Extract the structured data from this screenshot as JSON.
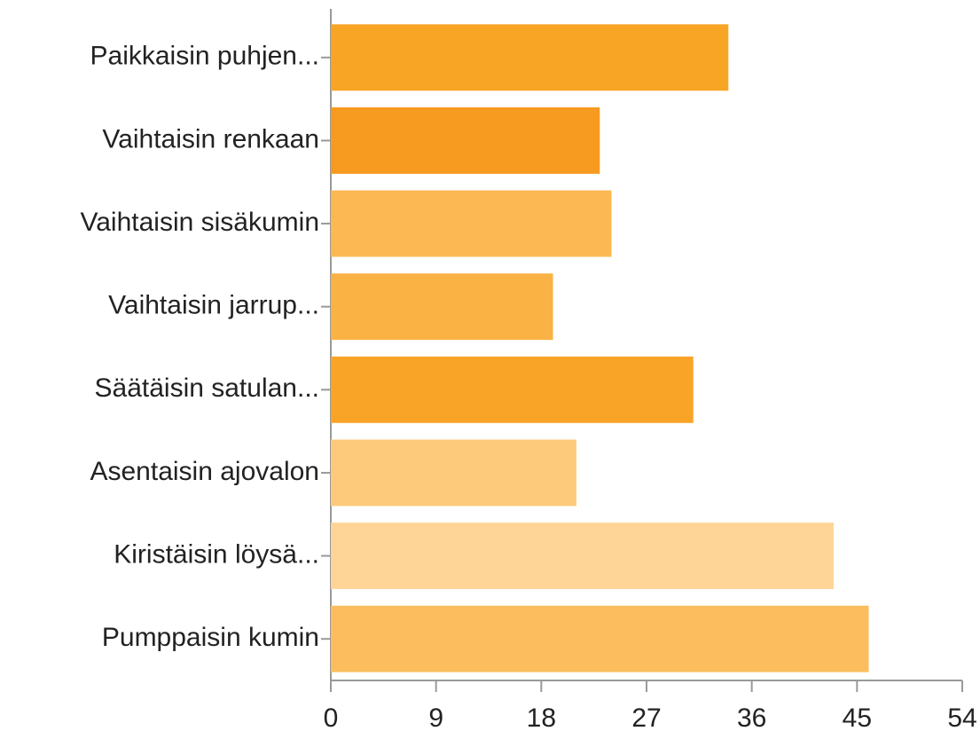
{
  "chart_data": {
    "type": "bar",
    "orientation": "horizontal",
    "categories": [
      "Paikkaisin puhjen...",
      "Vaihtaisin renkaan",
      "Vaihtaisin sisäkumin",
      "Vaihtaisin jarrup...",
      "Säätäisin satulan...",
      "Asentaisin ajovalon",
      "Kiristäisin löysä...",
      "Pumppaisin kumin"
    ],
    "values": [
      34,
      23,
      24,
      19,
      31,
      21,
      43,
      46
    ],
    "colors": [
      "#f8a525",
      "#f79a20",
      "#fbb853",
      "#fab245",
      "#f9a427",
      "#fdca7c",
      "#fed597",
      "#fbbd5d"
    ],
    "xlim": [
      0,
      54
    ],
    "xticks": [
      0,
      9,
      18,
      27,
      36,
      45,
      54
    ],
    "grid": false
  }
}
